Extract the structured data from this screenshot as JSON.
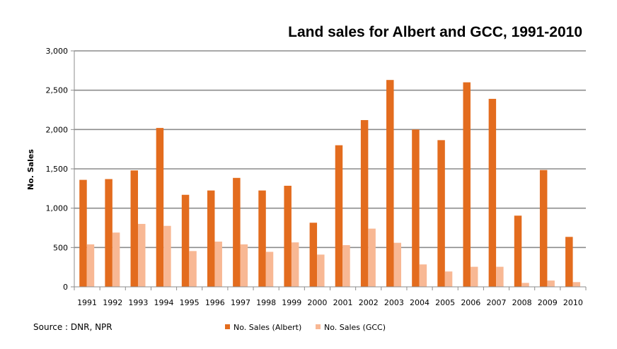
{
  "chart_data": {
    "type": "bar",
    "title": "Land sales for Albert and GCC, 1991-2010",
    "ylabel": "No. Sales",
    "xlabel": "",
    "ylim": [
      0,
      3000
    ],
    "yticks": [
      "0",
      "500",
      "1,000",
      "1,500",
      "2,000",
      "2,500",
      "3,000"
    ],
    "ytick_values": [
      0,
      500,
      1000,
      1500,
      2000,
      2500,
      3000
    ],
    "categories": [
      "1991",
      "1992",
      "1993",
      "1994",
      "1995",
      "1996",
      "1997",
      "1998",
      "1999",
      "2000",
      "2001",
      "2002",
      "2003",
      "2004",
      "2005",
      "2006",
      "2007",
      "2008",
      "2009",
      "2010"
    ],
    "series": [
      {
        "name": "No. Sales (Albert)",
        "color": "#E36C1E",
        "values": [
          1360,
          1370,
          1480,
          2020,
          1170,
          1225,
          1385,
          1225,
          1285,
          815,
          1800,
          2120,
          2630,
          2000,
          1865,
          2600,
          2390,
          905,
          1485,
          635
        ]
      },
      {
        "name": "No. Sales (GCC)",
        "color": "#F8B894",
        "values": [
          540,
          690,
          800,
          775,
          455,
          575,
          540,
          445,
          565,
          410,
          530,
          740,
          560,
          285,
          195,
          255,
          255,
          50,
          80,
          60
        ]
      }
    ],
    "grid": true,
    "legend_position": "bottom-center",
    "source": "Source : DNR, NPR"
  }
}
